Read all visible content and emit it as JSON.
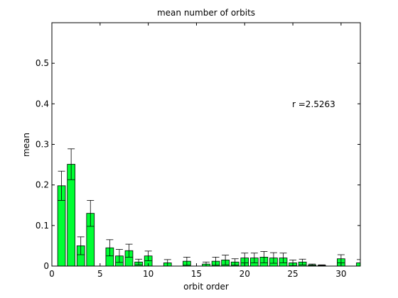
{
  "chart_data": {
    "type": "bar",
    "title": "mean number of orbits",
    "xlabel": "orbit order",
    "ylabel": "mean",
    "annotation": "r =2.5263",
    "xlim": [
      0,
      32
    ],
    "ylim": [
      0,
      0.6
    ],
    "xticks": [
      0,
      5,
      10,
      15,
      20,
      25,
      30
    ],
    "yticks": [
      0,
      0.1,
      0.2,
      0.3,
      0.4,
      0.5
    ],
    "bar_color": "#00ff33",
    "grid": false,
    "bars": [
      {
        "x": 1,
        "value": 0.198,
        "err": 0.036
      },
      {
        "x": 2,
        "value": 0.251,
        "err": 0.038
      },
      {
        "x": 3,
        "value": 0.05,
        "err": 0.022
      },
      {
        "x": 4,
        "value": 0.13,
        "err": 0.032
      },
      {
        "x": 6,
        "value": 0.045,
        "err": 0.02
      },
      {
        "x": 7,
        "value": 0.025,
        "err": 0.016
      },
      {
        "x": 8,
        "value": 0.038,
        "err": 0.016
      },
      {
        "x": 9,
        "value": 0.01,
        "err": 0.007
      },
      {
        "x": 10,
        "value": 0.025,
        "err": 0.012
      },
      {
        "x": 12,
        "value": 0.008,
        "err": 0.008
      },
      {
        "x": 14,
        "value": 0.012,
        "err": 0.01
      },
      {
        "x": 16,
        "value": 0.005,
        "err": 0.005
      },
      {
        "x": 17,
        "value": 0.012,
        "err": 0.01
      },
      {
        "x": 18,
        "value": 0.015,
        "err": 0.012
      },
      {
        "x": 19,
        "value": 0.01,
        "err": 0.008
      },
      {
        "x": 20,
        "value": 0.02,
        "err": 0.012
      },
      {
        "x": 21,
        "value": 0.02,
        "err": 0.012
      },
      {
        "x": 22,
        "value": 0.022,
        "err": 0.014
      },
      {
        "x": 23,
        "value": 0.02,
        "err": 0.013
      },
      {
        "x": 24,
        "value": 0.02,
        "err": 0.012
      },
      {
        "x": 25,
        "value": 0.008,
        "err": 0.007
      },
      {
        "x": 26,
        "value": 0.01,
        "err": 0.007
      },
      {
        "x": 27,
        "value": 0.003,
        "err": 0.002
      },
      {
        "x": 28,
        "value": 0.002,
        "err": 0.001
      },
      {
        "x": 30,
        "value": 0.018,
        "err": 0.01
      },
      {
        "x": 32,
        "value": 0.008,
        "err": 0.008
      }
    ]
  }
}
